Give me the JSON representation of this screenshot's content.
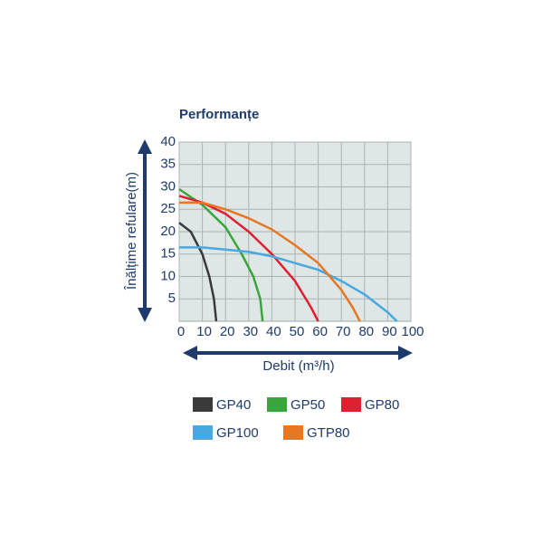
{
  "chart_data": {
    "type": "line",
    "title": "Performanțe",
    "y_label": "Înălțime refulare(m)",
    "x_label": "Debit (m³/h)",
    "xlim": [
      0,
      100
    ],
    "ylim": [
      0,
      40
    ],
    "xticks": [
      0,
      10,
      20,
      30,
      40,
      50,
      60,
      70,
      80,
      90,
      100
    ],
    "yticks": [
      5,
      10,
      15,
      20,
      25,
      30,
      35,
      40
    ],
    "grid": true,
    "series": [
      {
        "name": "GP40",
        "color": "#3a3a3a",
        "x": [
          0,
          5,
          10,
          13,
          15,
          16
        ],
        "values": [
          22,
          20,
          15,
          10,
          5,
          0
        ]
      },
      {
        "name": "GP50",
        "color": "#3aa53a",
        "x": [
          0,
          10,
          20,
          27,
          32,
          35,
          36
        ],
        "values": [
          29.5,
          26,
          21,
          15,
          10,
          5,
          0
        ]
      },
      {
        "name": "GP80",
        "color": "#e02030",
        "x": [
          0,
          10,
          20,
          30,
          40,
          50,
          57,
          60
        ],
        "values": [
          28,
          26.5,
          24,
          20,
          15,
          9,
          3,
          0
        ]
      },
      {
        "name": "GP100",
        "color": "#4aa8e0",
        "x": [
          0,
          10,
          20,
          30,
          40,
          50,
          60,
          70,
          80,
          90,
          94
        ],
        "values": [
          16.5,
          16.5,
          16,
          15.5,
          14.5,
          13,
          11.5,
          9,
          6,
          2,
          0
        ]
      },
      {
        "name": "GTP80",
        "color": "#e87722",
        "x": [
          0,
          10,
          20,
          30,
          40,
          50,
          60,
          70,
          75,
          78
        ],
        "values": [
          26.5,
          26.5,
          25,
          23,
          20.5,
          17,
          13,
          7,
          3,
          0
        ]
      }
    ]
  }
}
